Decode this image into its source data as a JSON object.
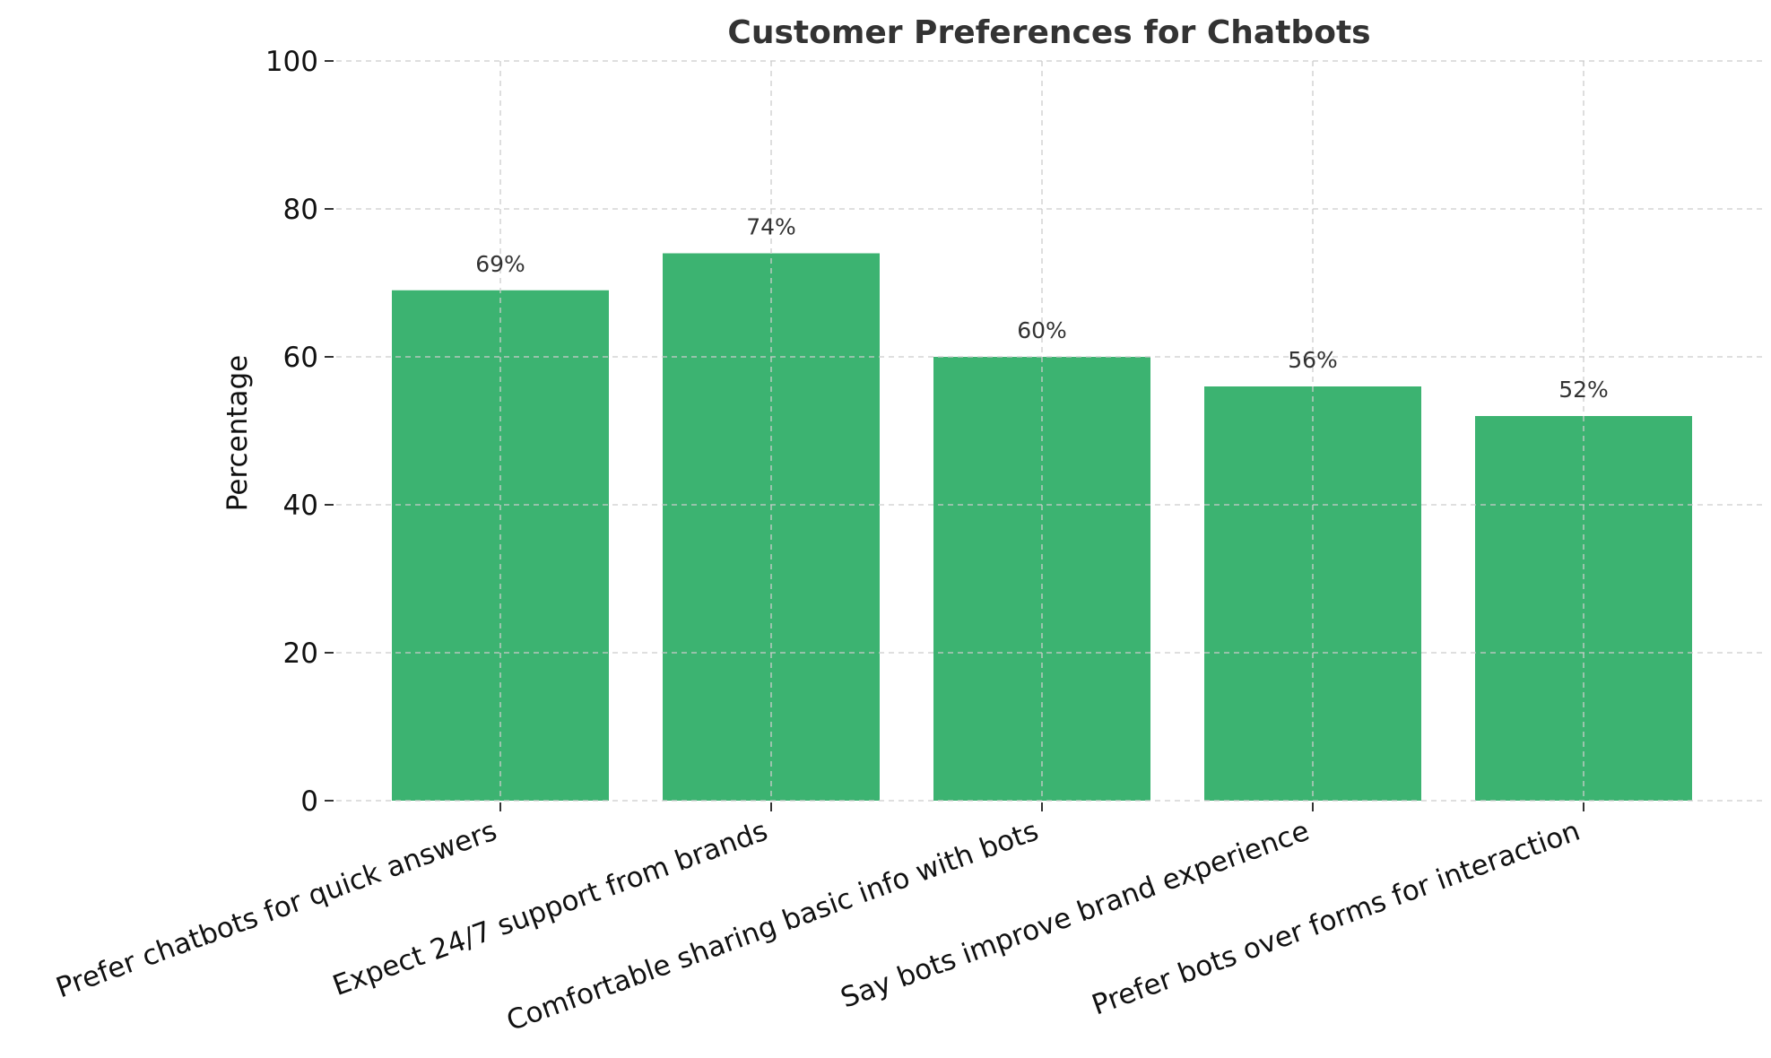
{
  "chart_data": {
    "type": "bar",
    "title": "Customer Preferences for Chatbots",
    "xlabel": "",
    "ylabel": "Percentage",
    "categories": [
      "Prefer chatbots for quick answers",
      "Expect 24/7 support from brands",
      "Comfortable sharing basic info with bots",
      "Say bots improve brand experience",
      "Prefer bots over forms for interaction"
    ],
    "values": [
      69,
      74,
      60,
      56,
      52
    ],
    "value_labels": [
      "69%",
      "74%",
      "60%",
      "56%",
      "52%"
    ],
    "ylim": [
      0,
      100
    ],
    "yticks": [
      0,
      20,
      40,
      60,
      80,
      100
    ],
    "ytick_labels": [
      "0",
      "20",
      "40",
      "60",
      "80",
      "100"
    ],
    "grid": true,
    "bar_color": "#3cb371"
  }
}
